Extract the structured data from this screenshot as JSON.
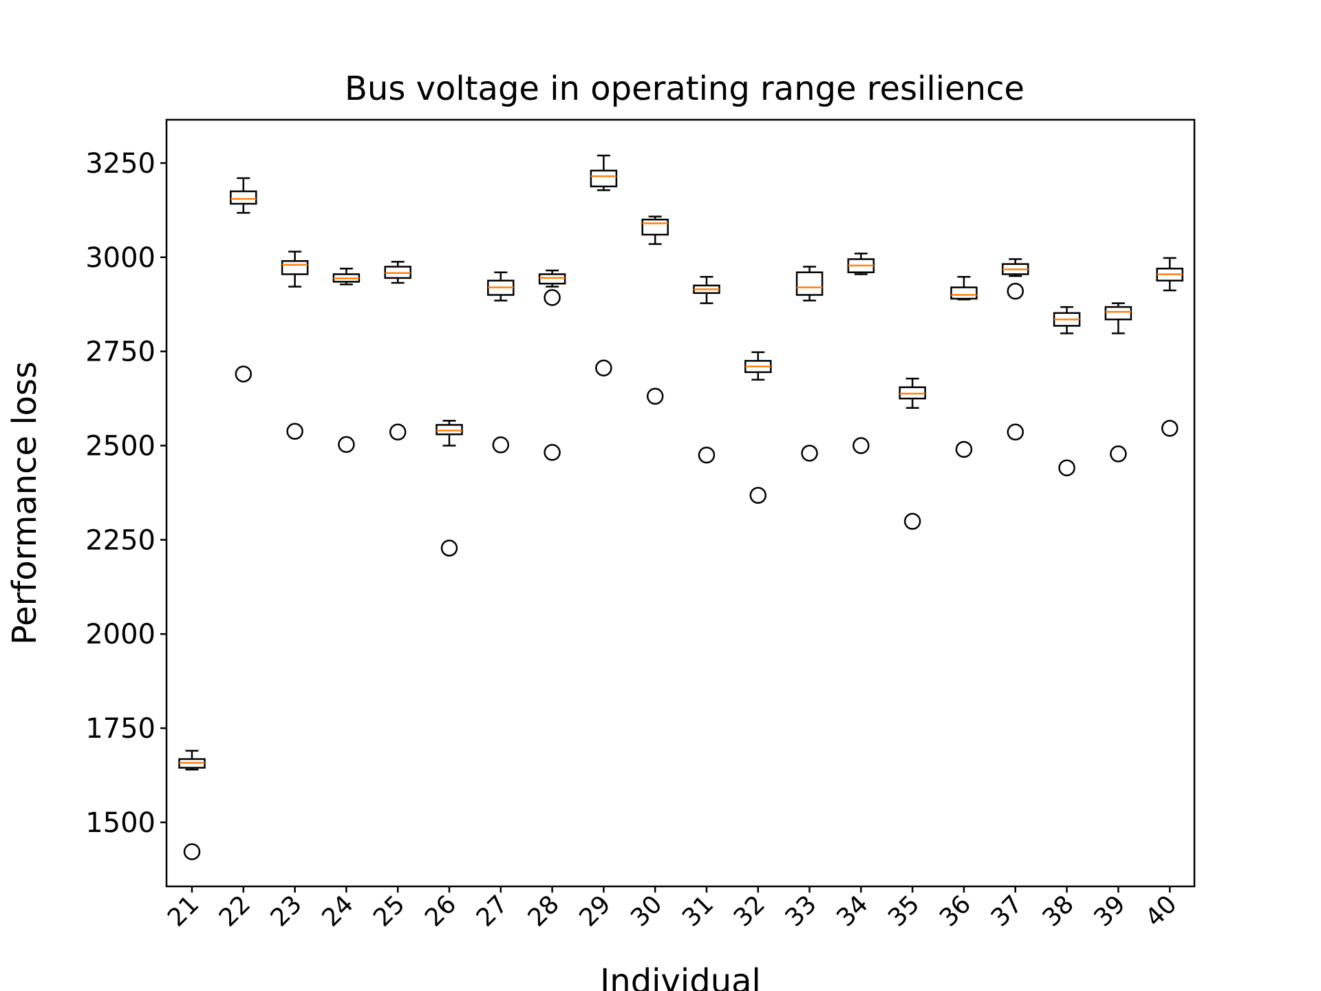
{
  "chart_data": {
    "type": "box",
    "title": "Bus voltage in operating range resilience",
    "xlabel": "Individual",
    "ylabel": "Performance loss",
    "ylim": [
      1330,
      3365
    ],
    "yticks": [
      1500,
      1750,
      2000,
      2250,
      2500,
      2750,
      3000,
      3250
    ],
    "categories": [
      "21",
      "22",
      "23",
      "24",
      "25",
      "26",
      "27",
      "28",
      "29",
      "30",
      "31",
      "32",
      "33",
      "34",
      "35",
      "36",
      "37",
      "38",
      "39",
      "40"
    ],
    "boxes": [
      {
        "whislo": 1640,
        "q1": 1645,
        "med": 1658,
        "q3": 1668,
        "whishi": 1690,
        "fliers": [
          1422
        ]
      },
      {
        "whislo": 3118,
        "q1": 3142,
        "med": 3155,
        "q3": 3175,
        "whishi": 3210,
        "fliers": [
          2690
        ]
      },
      {
        "whislo": 2922,
        "q1": 2955,
        "med": 2980,
        "q3": 2990,
        "whishi": 3015,
        "fliers": [
          2538
        ]
      },
      {
        "whislo": 2928,
        "q1": 2935,
        "med": 2944,
        "q3": 2955,
        "whishi": 2970,
        "fliers": [
          2503
        ]
      },
      {
        "whislo": 2932,
        "q1": 2945,
        "med": 2958,
        "q3": 2975,
        "whishi": 2988,
        "fliers": [
          2536
        ]
      },
      {
        "whislo": 2500,
        "q1": 2530,
        "med": 2540,
        "q3": 2555,
        "whishi": 2566,
        "fliers": [
          2228
        ]
      },
      {
        "whislo": 2885,
        "q1": 2900,
        "med": 2920,
        "q3": 2938,
        "whishi": 2960,
        "fliers": [
          2502
        ]
      },
      {
        "whislo": 2922,
        "q1": 2930,
        "med": 2945,
        "q3": 2955,
        "whishi": 2965,
        "fliers": [
          2893,
          2482
        ]
      },
      {
        "whislo": 3178,
        "q1": 3188,
        "med": 3215,
        "q3": 3230,
        "whishi": 3270,
        "fliers": [
          2706
        ]
      },
      {
        "whislo": 3035,
        "q1": 3060,
        "med": 3090,
        "q3": 3100,
        "whishi": 3108,
        "fliers": [
          2631
        ]
      },
      {
        "whislo": 2878,
        "q1": 2905,
        "med": 2915,
        "q3": 2925,
        "whishi": 2948,
        "fliers": [
          2475
        ]
      },
      {
        "whislo": 2675,
        "q1": 2695,
        "med": 2710,
        "q3": 2725,
        "whishi": 2748,
        "fliers": [
          2368
        ]
      },
      {
        "whislo": 2885,
        "q1": 2900,
        "med": 2920,
        "q3": 2960,
        "whishi": 2975,
        "fliers": [
          2480
        ]
      },
      {
        "whislo": 2955,
        "q1": 2960,
        "med": 2978,
        "q3": 2995,
        "whishi": 3010,
        "fliers": [
          2500
        ]
      },
      {
        "whislo": 2600,
        "q1": 2625,
        "med": 2638,
        "q3": 2655,
        "whishi": 2678,
        "fliers": [
          2299
        ]
      },
      {
        "whislo": 2888,
        "q1": 2890,
        "med": 2900,
        "q3": 2920,
        "whishi": 2948,
        "fliers": [
          2490
        ]
      },
      {
        "whislo": 2950,
        "q1": 2955,
        "med": 2968,
        "q3": 2982,
        "whishi": 2995,
        "fliers": [
          2910,
          2536
        ]
      },
      {
        "whislo": 2798,
        "q1": 2818,
        "med": 2835,
        "q3": 2852,
        "whishi": 2868,
        "fliers": [
          2441
        ]
      },
      {
        "whislo": 2798,
        "q1": 2835,
        "med": 2855,
        "q3": 2868,
        "whishi": 2878,
        "fliers": [
          2478
        ]
      },
      {
        "whislo": 2912,
        "q1": 2938,
        "med": 2955,
        "q3": 2970,
        "whishi": 2998,
        "fliers": [
          2546
        ]
      }
    ],
    "colors": {
      "box": "#000000",
      "median": "#ff7f0e",
      "flier": "#000000"
    },
    "grid": false,
    "legend": "none"
  }
}
